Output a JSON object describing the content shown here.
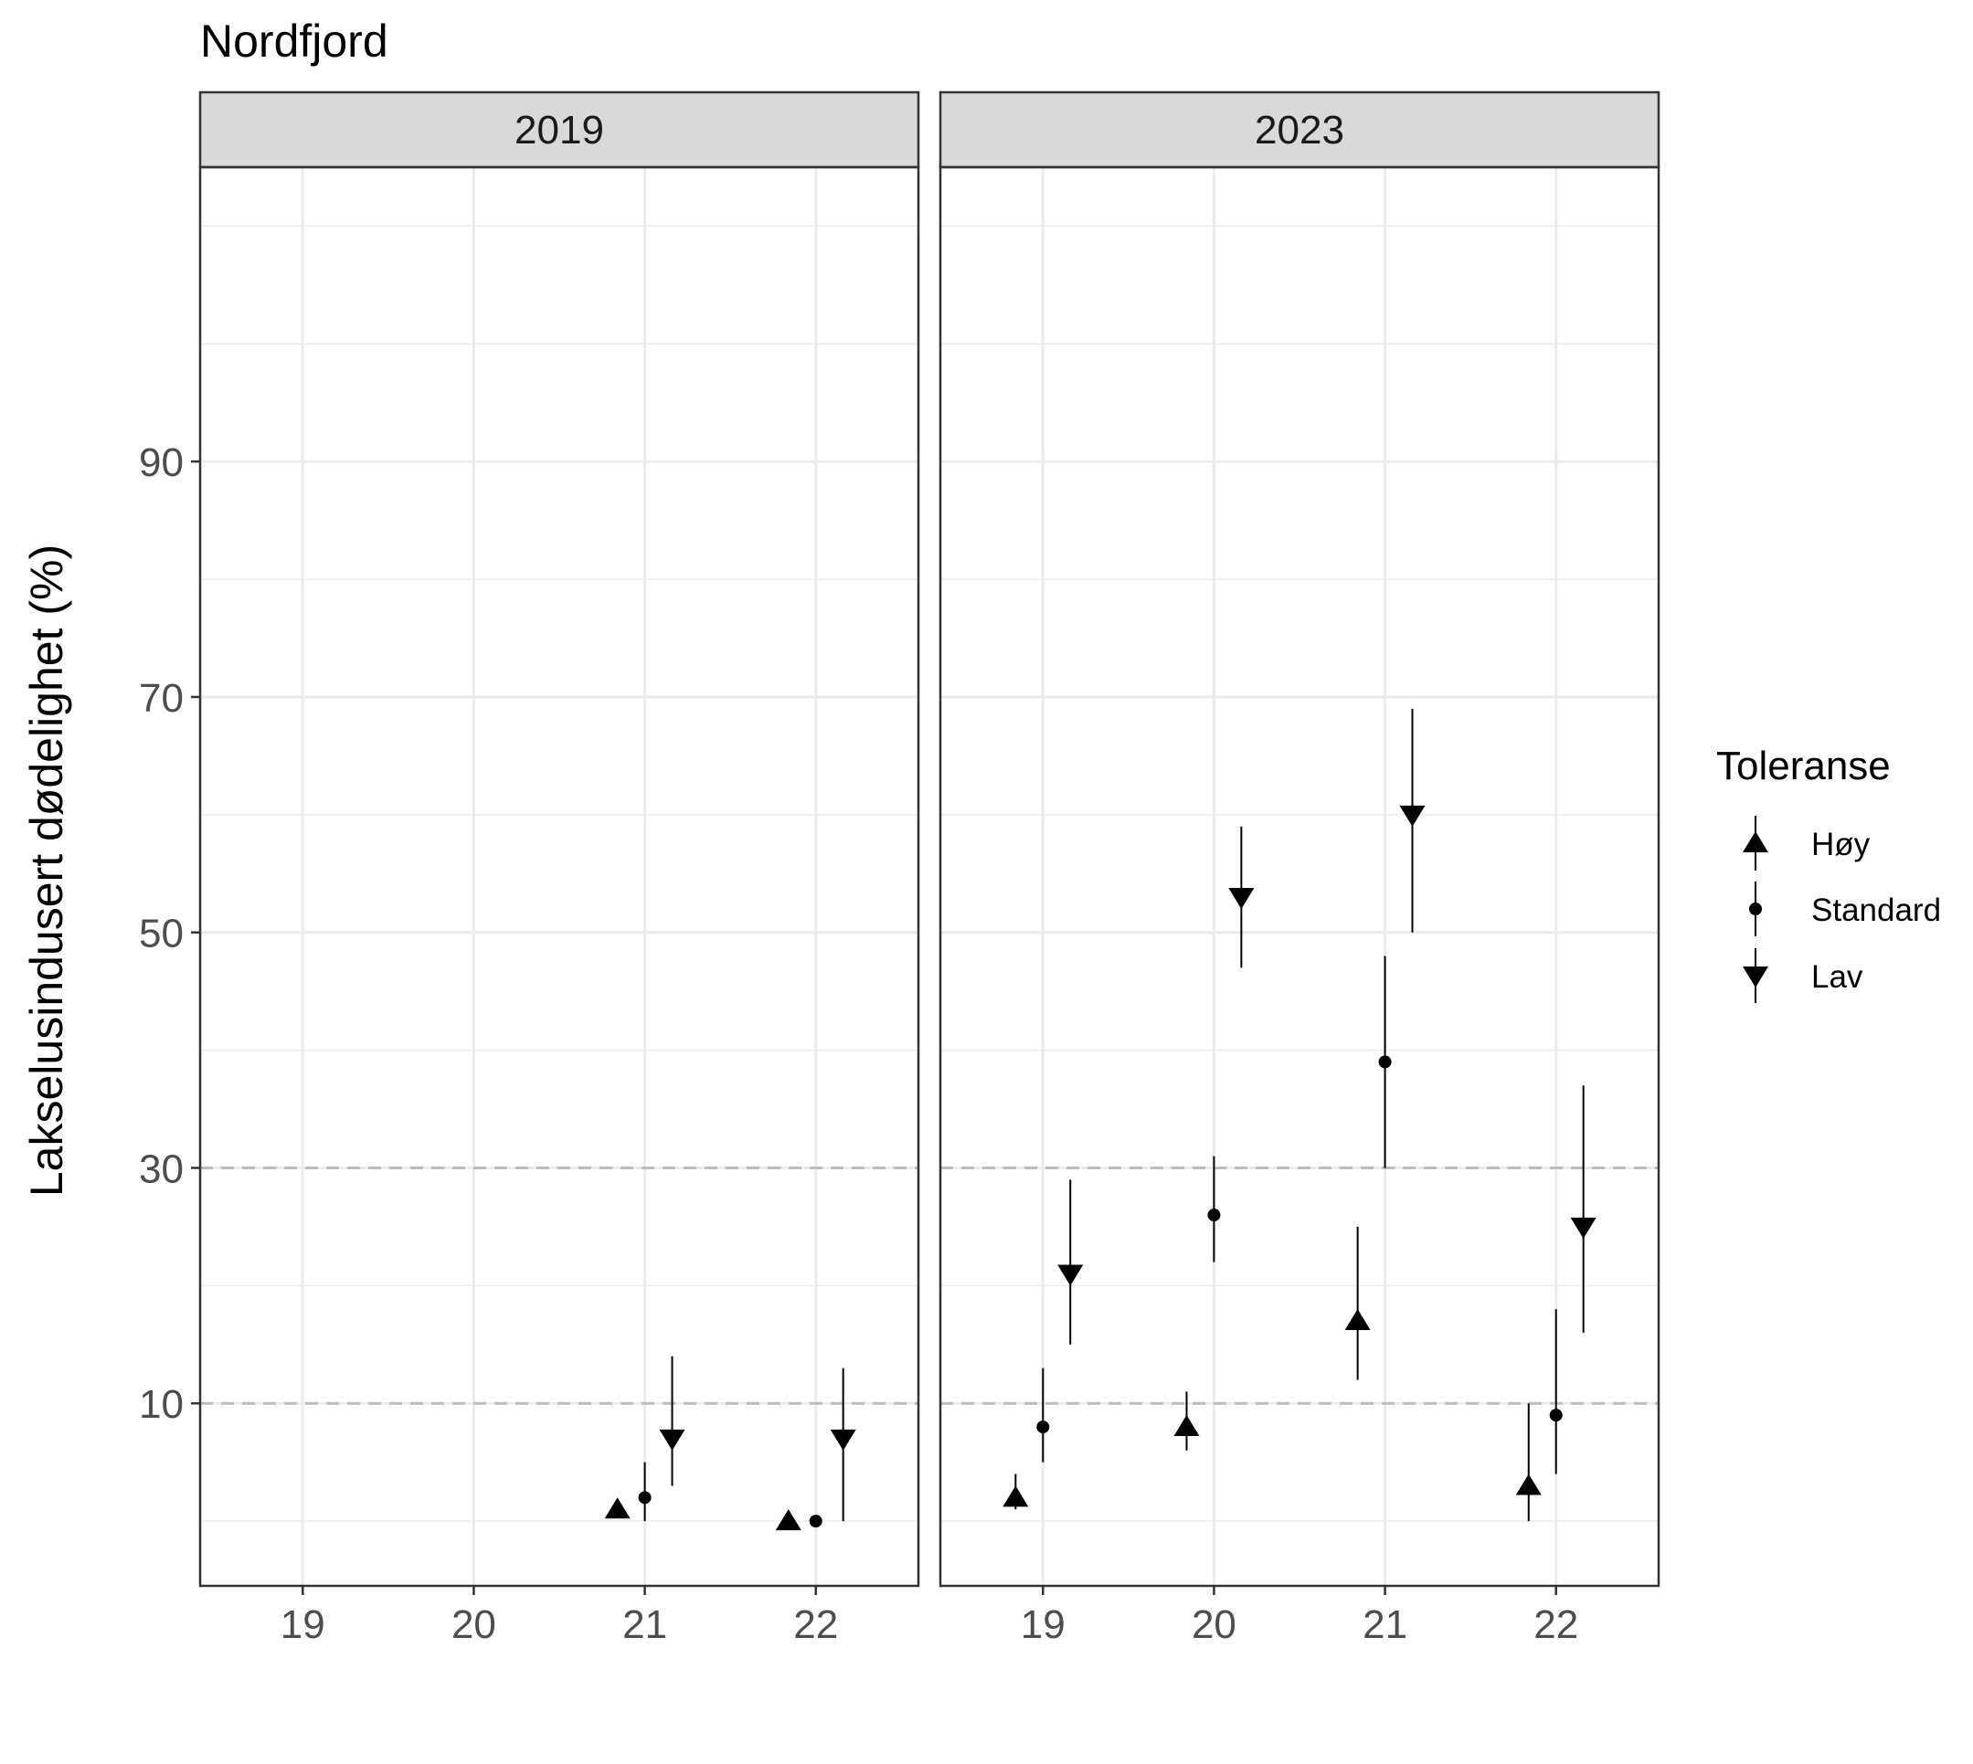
{
  "chart_data": {
    "type": "scatter",
    "title": "Nordfjord",
    "xlabel": "",
    "ylabel": "Lakselusindusert dødelighet (%)",
    "ylim": [
      -5.5,
      115
    ],
    "yticks": [
      10,
      30,
      50,
      70,
      90
    ],
    "xlim": [
      18.4,
      22.6
    ],
    "xticks": [
      19,
      20,
      21,
      22
    ],
    "xtick_labels": [
      "19",
      "20",
      "21",
      "22"
    ],
    "reference_lines": [
      10,
      30
    ],
    "legend": {
      "title": "Toleranse",
      "placement": "right",
      "entries": [
        {
          "label": "Høy",
          "shape": "triangle-up"
        },
        {
          "label": "Standard",
          "shape": "circle"
        },
        {
          "label": "Lav",
          "shape": "triangle-down"
        }
      ]
    },
    "panels": [
      {
        "label": "2019",
        "series": [
          {
            "tolerance": "Høy",
            "points": [
              {
                "x": 21,
                "y": 1,
                "ymin": 0.5,
                "ymax": 1.5
              },
              {
                "x": 22,
                "y": 0,
                "ymin": 0,
                "ymax": 0
              }
            ]
          },
          {
            "tolerance": "Standard",
            "points": [
              {
                "x": 21,
                "y": 2,
                "ymin": 0,
                "ymax": 5
              },
              {
                "x": 22,
                "y": 0,
                "ymin": 0,
                "ymax": 0
              }
            ]
          },
          {
            "tolerance": "Lav",
            "points": [
              {
                "x": 21,
                "y": 7,
                "ymin": 3,
                "ymax": 14
              },
              {
                "x": 22,
                "y": 7,
                "ymin": 0,
                "ymax": 13
              }
            ]
          }
        ]
      },
      {
        "label": "2023",
        "series": [
          {
            "tolerance": "Høy",
            "points": [
              {
                "x": 19,
                "y": 2,
                "ymin": 1,
                "ymax": 4
              },
              {
                "x": 20,
                "y": 8,
                "ymin": 6,
                "ymax": 11
              },
              {
                "x": 21,
                "y": 17,
                "ymin": 12,
                "ymax": 25
              },
              {
                "x": 22,
                "y": 3,
                "ymin": 0,
                "ymax": 10
              }
            ]
          },
          {
            "tolerance": "Standard",
            "points": [
              {
                "x": 19,
                "y": 8,
                "ymin": 5,
                "ymax": 13
              },
              {
                "x": 20,
                "y": 26,
                "ymin": 22,
                "ymax": 31
              },
              {
                "x": 21,
                "y": 39,
                "ymin": 30,
                "ymax": 48
              },
              {
                "x": 22,
                "y": 9,
                "ymin": 4,
                "ymax": 18
              }
            ]
          },
          {
            "tolerance": "Lav",
            "points": [
              {
                "x": 19,
                "y": 21,
                "ymin": 15,
                "ymax": 29
              },
              {
                "x": 20,
                "y": 53,
                "ymin": 47,
                "ymax": 59
              },
              {
                "x": 21,
                "y": 60,
                "ymin": 50,
                "ymax": 69
              },
              {
                "x": 22,
                "y": 25,
                "ymin": 16,
                "ymax": 37
              }
            ]
          }
        ]
      }
    ]
  }
}
